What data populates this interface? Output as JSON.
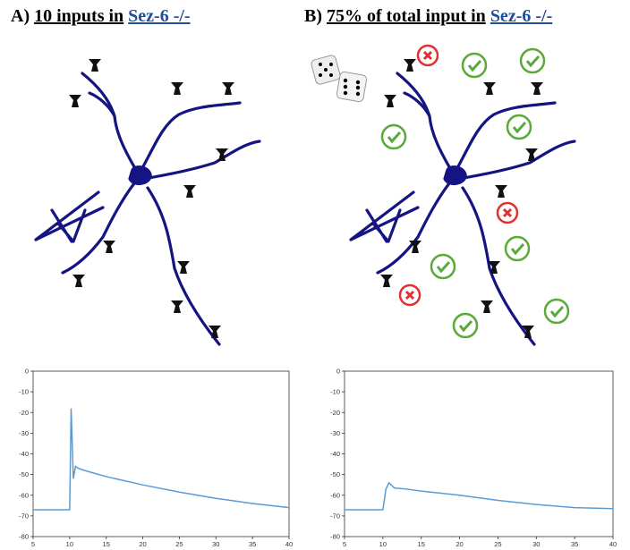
{
  "chart_data": [
    {
      "type": "line",
      "title": [
        "A)",
        "10 inputs in",
        "Sez-6 -/-"
      ],
      "x": [
        5,
        10,
        10.2,
        10.5,
        10.8,
        11.2,
        12,
        15,
        20,
        25,
        30,
        35,
        40
      ],
      "series": [
        {
          "color": "#5b9bd5",
          "values": [
            -67,
            -67,
            -18,
            -52,
            -46,
            -47,
            -48,
            -51,
            -55,
            -58.5,
            -61.5,
            -64,
            -66
          ]
        }
      ],
      "xlim": [
        5,
        40
      ],
      "xticks": [
        5,
        10,
        15,
        20,
        25,
        30,
        35,
        40
      ],
      "ylim": [
        -80,
        0
      ],
      "yticks": [
        0,
        -10,
        -20,
        -30,
        -40,
        -50,
        -60,
        -70,
        -80
      ]
    },
    {
      "type": "line",
      "title": [
        "B)",
        "75% of total input in",
        "Sez-6 -/-"
      ],
      "x": [
        5,
        10,
        10.4,
        10.8,
        11.5,
        13,
        15,
        20,
        25,
        30,
        35,
        40
      ],
      "series": [
        {
          "color": "#5b9bd5",
          "values": [
            -67,
            -67,
            -57,
            -54,
            -56.5,
            -57,
            -58,
            -60,
            -62.5,
            -64.5,
            -66,
            -66.5
          ]
        }
      ],
      "xlim": [
        5,
        40
      ],
      "xticks": [
        5,
        10,
        15,
        20,
        25,
        30,
        35,
        40
      ],
      "ylim": [
        -80,
        0
      ],
      "yticks": [
        0,
        -10,
        -20,
        -30,
        -40,
        -50,
        -60,
        -70,
        -80
      ]
    }
  ]
}
